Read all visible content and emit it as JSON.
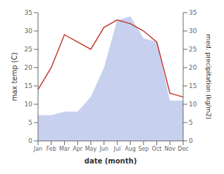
{
  "chart_data": {
    "type": "line",
    "xlabel": "date (month)",
    "ylabel": "max temp (C)",
    "y2label": "med. precipitation (kg/m2)",
    "categories": [
      "Jan",
      "Feb",
      "Mar",
      "Apr",
      "May",
      "Jun",
      "Jul",
      "Aug",
      "Sep",
      "Oct",
      "Nov",
      "Dec"
    ],
    "series": [
      {
        "type": "area",
        "axis": "y2",
        "color": "#c8d0f0",
        "values": [
          7,
          7,
          8,
          8,
          12,
          20,
          33,
          34,
          28,
          27,
          11,
          11
        ]
      },
      {
        "type": "line",
        "color": "#c0392b",
        "values": [
          14,
          20,
          29,
          27,
          25,
          31,
          33,
          32,
          30,
          27,
          13,
          12
        ]
      }
    ],
    "ylim": [
      0,
      35
    ],
    "yticks": [
      0,
      5,
      10,
      15,
      20,
      25,
      30,
      35
    ],
    "y2lim": [
      0,
      35
    ],
    "y2ticks": [
      0,
      5,
      10,
      15,
      20,
      25,
      30,
      35
    ]
  }
}
